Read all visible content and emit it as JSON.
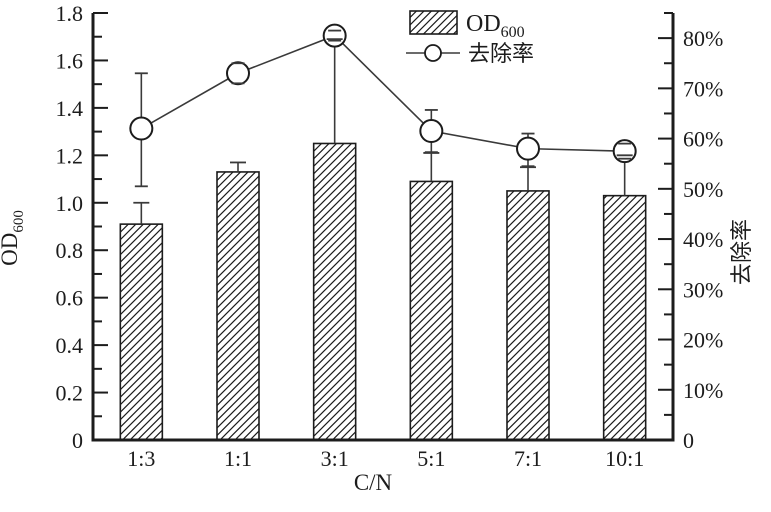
{
  "figure": {
    "background": "#ffffff",
    "ink_color": "#1c1c1c",
    "line_color": "#3a3a3a"
  },
  "chart_data": {
    "type": "bar",
    "combo": "bar+line-dual-axis",
    "title": "",
    "xlabel": "C/N",
    "grid": false,
    "categories": [
      "1:3",
      "1:1",
      "3:1",
      "5:1",
      "7:1",
      "10:1"
    ],
    "series": [
      {
        "name": "OD600",
        "name_base": "OD",
        "name_sub": "600",
        "type": "bar",
        "axis": "left",
        "style": "diagonal-hatch",
        "values": [
          0.91,
          1.13,
          1.25,
          1.09,
          1.05,
          1.03
        ],
        "error_cap_top": [
          1.0,
          1.17,
          1.69,
          1.21,
          1.15,
          1.2
        ]
      },
      {
        "name": "去除率",
        "type": "line",
        "axis": "right",
        "marker": "open-circle",
        "unit": "%",
        "values": [
          62,
          73,
          80.5,
          61.5,
          58,
          57.5
        ],
        "error_low": [
          50.5,
          71,
          79.5,
          57.3,
          54.5,
          56
        ],
        "error_high": [
          73,
          75,
          81.5,
          65.7,
          61,
          59
        ]
      }
    ],
    "left_axis": {
      "title_base": "OD",
      "title_sub": "600",
      "min": 0,
      "max": 1.8,
      "major_step": 0.2,
      "minor_step": 0.1,
      "tick_labels": [
        "0",
        "0.2",
        "0.4",
        "0.6",
        "0.8",
        "1.0",
        "1.2",
        "1.4",
        "1.6",
        "1.8"
      ]
    },
    "right_axis": {
      "title": "去除率",
      "min": 0,
      "max": 85,
      "major_step": 10,
      "minor_step": 5,
      "tick_labels": [
        "0",
        "10%",
        "20%",
        "30%",
        "40%",
        "50%",
        "60%",
        "70%",
        "80%"
      ]
    },
    "legend": {
      "position": "top-center-right",
      "border": false,
      "items": [
        {
          "label_base": "OD",
          "label_sub": "600",
          "swatch": "hatch-box"
        },
        {
          "label": "去除率",
          "swatch": "line-open-circle"
        }
      ]
    }
  }
}
